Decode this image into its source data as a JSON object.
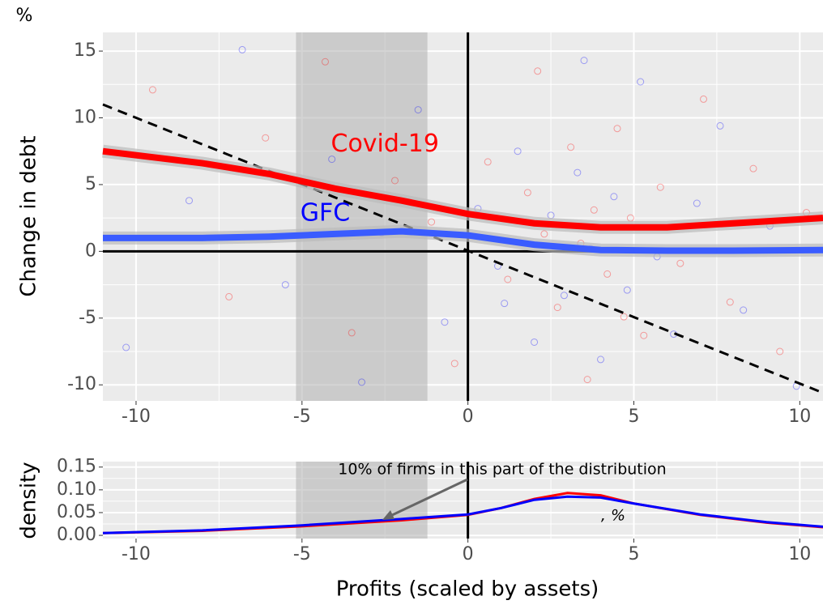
{
  "chart_data": [
    {
      "type": "scatter",
      "unit_label": "%",
      "y_label": "Change in debt",
      "xlim": [
        -11,
        10.7
      ],
      "ylim": [
        -11.2,
        16.4
      ],
      "xticks": [
        -10,
        -5,
        0,
        5,
        10
      ],
      "yticks": [
        15,
        10,
        5,
        0,
        -5,
        -10
      ],
      "grid": true,
      "shaded_x": [
        -5.18,
        -1.22
      ],
      "reference_line": {
        "x": [
          -11,
          10.7
        ],
        "y": [
          11,
          -10.6
        ]
      },
      "fit_x": [
        -11,
        -8,
        -6,
        -4,
        -2,
        0,
        2,
        4,
        6,
        8,
        10.7
      ],
      "series": [
        {
          "name": "Covid-19",
          "color": "#ff0000",
          "fit_y": [
            7.5,
            6.6,
            5.8,
            4.7,
            3.8,
            2.8,
            2.1,
            1.8,
            1.8,
            2.1,
            2.5
          ],
          "x": [
            -9.5,
            -7.2,
            -6.1,
            -4.3,
            -3.5,
            -2.2,
            -1.1,
            -0.4,
            0.6,
            1.2,
            1.8,
            2.3,
            2.7,
            3.1,
            3.4,
            3.8,
            4.2,
            4.5,
            4.9,
            5.3,
            5.8,
            6.4,
            7.1,
            7.9,
            8.6,
            9.4,
            10.2,
            3.6,
            2.1,
            4.7
          ],
          "y": [
            12.1,
            -3.4,
            8.5,
            14.2,
            -6.1,
            5.3,
            2.2,
            -8.4,
            6.7,
            -2.1,
            4.4,
            1.3,
            -4.2,
            7.8,
            0.6,
            3.1,
            -1.7,
            9.2,
            2.5,
            -6.3,
            4.8,
            -0.9,
            11.4,
            -3.8,
            6.2,
            -7.5,
            2.9,
            -9.6,
            13.5,
            -4.9
          ]
        },
        {
          "name": "GFC",
          "color": "#0000ff",
          "fit_y": [
            1.0,
            1.0,
            1.1,
            1.3,
            1.5,
            1.2,
            0.5,
            0.1,
            0.05,
            0.05,
            0.1
          ],
          "x": [
            -10.3,
            -8.4,
            -6.8,
            -5.5,
            -4.1,
            -3.2,
            -2.6,
            -1.5,
            -0.7,
            0.3,
            0.9,
            1.5,
            2.0,
            2.5,
            2.9,
            3.3,
            3.7,
            4.0,
            4.4,
            4.8,
            5.2,
            5.7,
            6.2,
            6.9,
            7.6,
            8.3,
            9.1,
            9.9,
            1.1,
            3.5
          ],
          "y": [
            -7.2,
            3.8,
            15.1,
            -2.5,
            6.9,
            -9.8,
            1.4,
            10.6,
            -5.3,
            3.2,
            -1.1,
            7.5,
            -6.8,
            2.7,
            -3.3,
            5.9,
            0.2,
            -8.1,
            4.1,
            -2.9,
            12.7,
            -0.4,
            -6.2,
            3.6,
            9.4,
            -4.4,
            1.9,
            -10.1,
            -3.9,
            14.3
          ]
        }
      ]
    },
    {
      "type": "line",
      "y_label": "density",
      "x_label": "Profits (scaled by assets)",
      "annotation": "10% of firms in this part of the distribution",
      "note": ", %",
      "xlim": [
        -11,
        10.7
      ],
      "ylim": [
        -0.007,
        0.162
      ],
      "xticks": [
        -10,
        -5,
        0,
        5,
        10
      ],
      "yticks": [
        {
          "value": 0,
          "label": "0.00"
        },
        {
          "value": 0.05,
          "label": "0.05"
        },
        {
          "value": 0.1,
          "label": "0.10"
        },
        {
          "value": 0.15,
          "label": "0.15"
        }
      ],
      "grid": true,
      "shaded_x": [
        -5.18,
        -1.22
      ],
      "x": [
        -11,
        -8,
        -5,
        -2,
        0,
        1,
        2,
        3,
        4,
        5,
        7,
        9,
        10.7
      ],
      "series": [
        {
          "color": "#ff0000",
          "values": [
            0.005,
            0.01,
            0.02,
            0.033,
            0.045,
            0.06,
            0.08,
            0.093,
            0.088,
            0.07,
            0.045,
            0.028,
            0.018
          ]
        },
        {
          "color": "#0000ff",
          "values": [
            0.005,
            0.011,
            0.022,
            0.036,
            0.046,
            0.06,
            0.078,
            0.085,
            0.083,
            0.07,
            0.046,
            0.029,
            0.019
          ]
        }
      ]
    }
  ]
}
